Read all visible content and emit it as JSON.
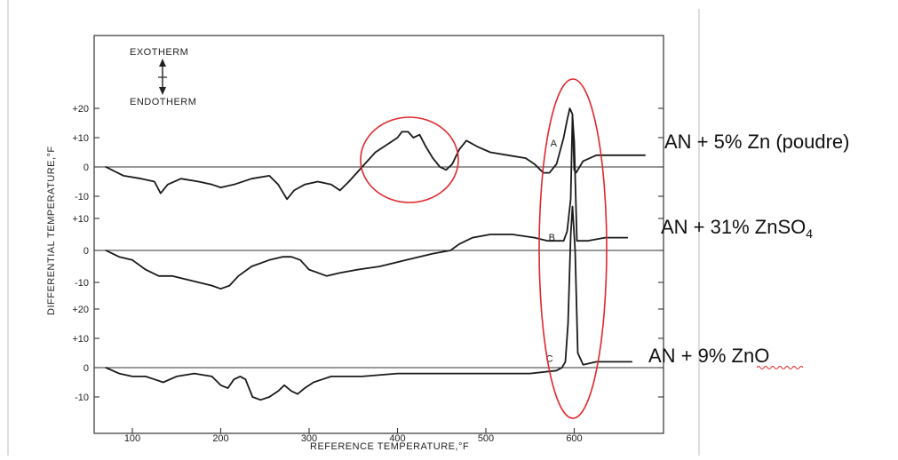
{
  "chart_data": {
    "type": "line",
    "xlabel": "REFERENCE TEMPERATURE,°F",
    "ylabel": "DIFFERENTIAL TEMPERATURE,°F",
    "xlim": [
      65,
      700
    ],
    "x_ticks": [
      "100",
      "200",
      "300",
      "400",
      "500",
      "600"
    ],
    "legend_text": {
      "top": "EXOTHERM",
      "bottom": "ENDOTHERM"
    },
    "panels": [
      {
        "id": "A",
        "y_ticks": [
          "+20",
          "+10",
          "0",
          "-10"
        ],
        "y_tick_values": [
          20,
          10,
          0,
          -10
        ],
        "ylim": [
          -15,
          25
        ]
      },
      {
        "id": "B",
        "y_ticks": [
          "+10",
          "0",
          "-10"
        ],
        "y_tick_values": [
          10,
          0,
          -10
        ],
        "ylim": [
          -15,
          12
        ]
      },
      {
        "id": "C",
        "y_ticks": [
          "+20",
          "+10",
          "0",
          "-10"
        ],
        "y_tick_values": [
          20,
          10,
          0,
          -10
        ],
        "ylim": [
          -15,
          25
        ]
      }
    ],
    "series": [
      {
        "name": "A",
        "panel": 0,
        "points": [
          [
            70,
            0
          ],
          [
            90,
            -3
          ],
          [
            110,
            -4
          ],
          [
            125,
            -5
          ],
          [
            132,
            -9
          ],
          [
            140,
            -6
          ],
          [
            155,
            -4
          ],
          [
            175,
            -5
          ],
          [
            190,
            -6
          ],
          [
            200,
            -7
          ],
          [
            215,
            -6
          ],
          [
            235,
            -4
          ],
          [
            255,
            -3
          ],
          [
            265,
            -6
          ],
          [
            275,
            -11
          ],
          [
            283,
            -8
          ],
          [
            295,
            -6
          ],
          [
            310,
            -5
          ],
          [
            325,
            -6
          ],
          [
            335,
            -8
          ],
          [
            345,
            -5
          ],
          [
            360,
            0
          ],
          [
            375,
            5
          ],
          [
            390,
            8
          ],
          [
            400,
            10
          ],
          [
            405,
            12
          ],
          [
            412,
            12
          ],
          [
            418,
            10
          ],
          [
            425,
            11
          ],
          [
            432,
            7
          ],
          [
            440,
            3
          ],
          [
            448,
            0
          ],
          [
            455,
            -1
          ],
          [
            462,
            1
          ],
          [
            470,
            6
          ],
          [
            478,
            9
          ],
          [
            490,
            7
          ],
          [
            505,
            5
          ],
          [
            525,
            4
          ],
          [
            545,
            3
          ],
          [
            555,
            1
          ],
          [
            565,
            -2
          ],
          [
            572,
            -2
          ],
          [
            580,
            1
          ],
          [
            588,
            10
          ],
          [
            592,
            16
          ],
          [
            595,
            20
          ],
          [
            598,
            18
          ],
          [
            600,
            -1
          ],
          [
            602,
            -2
          ],
          [
            610,
            2
          ],
          [
            625,
            4
          ],
          [
            640,
            4
          ],
          [
            660,
            4
          ],
          [
            680,
            4
          ]
        ]
      },
      {
        "name": "B",
        "panel": 1,
        "points": [
          [
            70,
            0
          ],
          [
            85,
            -2
          ],
          [
            100,
            -3
          ],
          [
            115,
            -6
          ],
          [
            130,
            -8
          ],
          [
            145,
            -8
          ],
          [
            160,
            -9
          ],
          [
            175,
            -10
          ],
          [
            190,
            -11
          ],
          [
            200,
            -12
          ],
          [
            210,
            -11
          ],
          [
            220,
            -8
          ],
          [
            235,
            -5
          ],
          [
            255,
            -3
          ],
          [
            270,
            -2
          ],
          [
            280,
            -2
          ],
          [
            290,
            -3
          ],
          [
            300,
            -6
          ],
          [
            310,
            -7
          ],
          [
            320,
            -8
          ],
          [
            335,
            -7
          ],
          [
            355,
            -6
          ],
          [
            380,
            -5
          ],
          [
            410,
            -3
          ],
          [
            440,
            -1
          ],
          [
            460,
            0
          ],
          [
            470,
            2
          ],
          [
            485,
            4
          ],
          [
            505,
            5
          ],
          [
            530,
            5
          ],
          [
            555,
            4
          ],
          [
            570,
            3
          ],
          [
            580,
            3
          ],
          [
            588,
            3
          ],
          [
            592,
            6
          ],
          [
            596,
            16
          ],
          [
            598,
            42
          ],
          [
            600,
            34
          ],
          [
            603,
            3
          ],
          [
            615,
            3
          ],
          [
            635,
            4
          ],
          [
            660,
            4
          ]
        ]
      },
      {
        "name": "C",
        "panel": 2,
        "points": [
          [
            70,
            0
          ],
          [
            85,
            -2
          ],
          [
            100,
            -3
          ],
          [
            115,
            -3
          ],
          [
            125,
            -4
          ],
          [
            135,
            -5
          ],
          [
            150,
            -3
          ],
          [
            170,
            -2
          ],
          [
            190,
            -3
          ],
          [
            200,
            -6
          ],
          [
            208,
            -7
          ],
          [
            215,
            -4
          ],
          [
            222,
            -3
          ],
          [
            228,
            -4
          ],
          [
            236,
            -10
          ],
          [
            245,
            -11
          ],
          [
            255,
            -10
          ],
          [
            265,
            -8
          ],
          [
            272,
            -6
          ],
          [
            280,
            -8
          ],
          [
            287,
            -9
          ],
          [
            295,
            -7
          ],
          [
            305,
            -5
          ],
          [
            315,
            -4
          ],
          [
            325,
            -3
          ],
          [
            340,
            -3
          ],
          [
            360,
            -3
          ],
          [
            400,
            -2
          ],
          [
            450,
            -2
          ],
          [
            500,
            -2
          ],
          [
            550,
            -2
          ],
          [
            580,
            -1
          ],
          [
            586,
            0
          ],
          [
            590,
            2
          ],
          [
            593,
            15
          ],
          [
            596,
            45
          ],
          [
            598,
            55
          ],
          [
            601,
            40
          ],
          [
            604,
            5
          ],
          [
            610,
            1
          ],
          [
            625,
            2
          ],
          [
            645,
            2
          ],
          [
            665,
            2
          ]
        ]
      }
    ],
    "curve_labels": [
      {
        "text": "A",
        "x": 573,
        "y": 7,
        "panel": 0
      },
      {
        "text": "B",
        "x": 571,
        "y": 3,
        "panel": 1
      },
      {
        "text": "C",
        "x": 568,
        "y": 2,
        "panel": 2
      }
    ],
    "annotations": [
      {
        "label_main": "AN + 5% Zn (poudre)",
        "label_sub": ""
      },
      {
        "label_main": "AN + 31% ZnSO",
        "label_sub": "4"
      },
      {
        "label_main": "AN + 9% ZnO",
        "label_sub": ""
      }
    ],
    "highlight_color": "#e0272c"
  }
}
